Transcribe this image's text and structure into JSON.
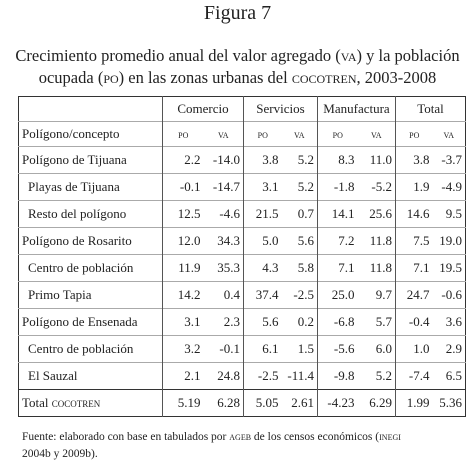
{
  "header": {
    "title": "Figura 7",
    "caption": {
      "line1": [
        "Crecimiento promedio anual del valor agregado (",
        "va",
        ") y la población"
      ],
      "line2": [
        "ocupada (",
        "po",
        ") en las zonas urbanas del ",
        "cocotren",
        ", 2003-2008"
      ]
    }
  },
  "table": {
    "groups": [
      "Comercio",
      "Servicios",
      "Manufactura",
      "Total"
    ],
    "row_header": "Polígono/concepto",
    "subheaders": [
      "po",
      "va"
    ],
    "rows": [
      {
        "label": [
          "Polígono de Tijuana"
        ],
        "values": [
          "2.2",
          "-14.0",
          "3.8",
          "5.2",
          "8.3",
          "11.0",
          "3.8",
          "-3.7"
        ]
      },
      {
        "label": [
          "Playas de Tijuana"
        ],
        "values": [
          "-0.1",
          "-14.7",
          "3.1",
          "5.2",
          "-1.8",
          "-5.2",
          "1.9",
          "-4.9"
        ]
      },
      {
        "label": [
          "Resto del polígono"
        ],
        "values": [
          "12.5",
          "-4.6",
          "21.5",
          "0.7",
          "14.1",
          "25.6",
          "14.6",
          "9.5"
        ]
      },
      {
        "label": [
          "Polígono de Rosarito"
        ],
        "values": [
          "12.0",
          "34.3",
          "5.0",
          "5.6",
          "7.2",
          "11.8",
          "7.5",
          "19.0"
        ]
      },
      {
        "label": [
          "Centro de población"
        ],
        "values": [
          "11.9",
          "35.3",
          "4.3",
          "5.8",
          "7.1",
          "11.8",
          "7.1",
          "19.5"
        ]
      },
      {
        "label": [
          "Primo Tapia"
        ],
        "values": [
          "14.2",
          "0.4",
          "37.4",
          "-2.5",
          "25.0",
          "9.7",
          "24.7",
          "-0.6"
        ]
      },
      {
        "label": [
          "Polígono de Ensenada"
        ],
        "values": [
          "3.1",
          "2.3",
          "5.6",
          "0.2",
          "-6.8",
          "5.7",
          "-0.4",
          "3.6"
        ]
      },
      {
        "label": [
          "Centro de población"
        ],
        "values": [
          "3.2",
          "-0.1",
          "6.1",
          "1.5",
          "-5.6",
          "6.0",
          "1.0",
          "2.9"
        ]
      },
      {
        "label": [
          "El Sauzal"
        ],
        "values": [
          "2.1",
          "24.8",
          "-2.5",
          "-11.4",
          "-9.8",
          "5.2",
          "-7.4",
          "6.5"
        ]
      },
      {
        "label": [
          "Total ",
          "cocotren"
        ],
        "values": [
          "5.19",
          "6.28",
          "5.05",
          "2.61",
          "-4.23",
          "6.29",
          "1.99",
          "5.36"
        ]
      }
    ]
  },
  "footnote": {
    "line1": [
      "Fuente: elaborado con base en tabulados por ",
      "ageb",
      " de los censos económicos (",
      "inegi"
    ],
    "line2": [
      "2004b y 2009b)."
    ]
  }
}
